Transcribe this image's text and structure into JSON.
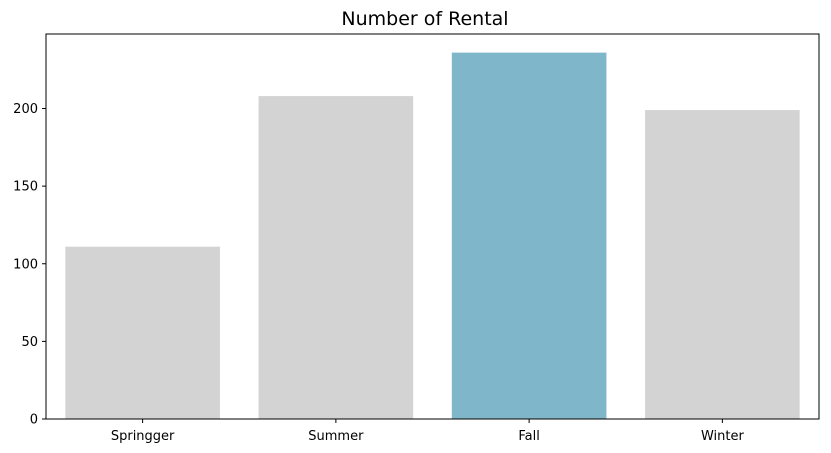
{
  "chart_data": {
    "type": "bar",
    "title": "Number of Rental",
    "xlabel": "",
    "ylabel": "",
    "categories": [
      "Springger",
      "Summer",
      "Fall",
      "Winter"
    ],
    "values": [
      111,
      208,
      236,
      199
    ],
    "ylim": [
      0,
      248
    ],
    "yticks": [
      0,
      50,
      100,
      150,
      200
    ],
    "highlight_index": 2,
    "colors": {
      "bar_default": "#d3d3d3",
      "bar_highlight": "#7fb6c9",
      "axis": "#000000"
    },
    "grid": false,
    "legend": "none"
  }
}
